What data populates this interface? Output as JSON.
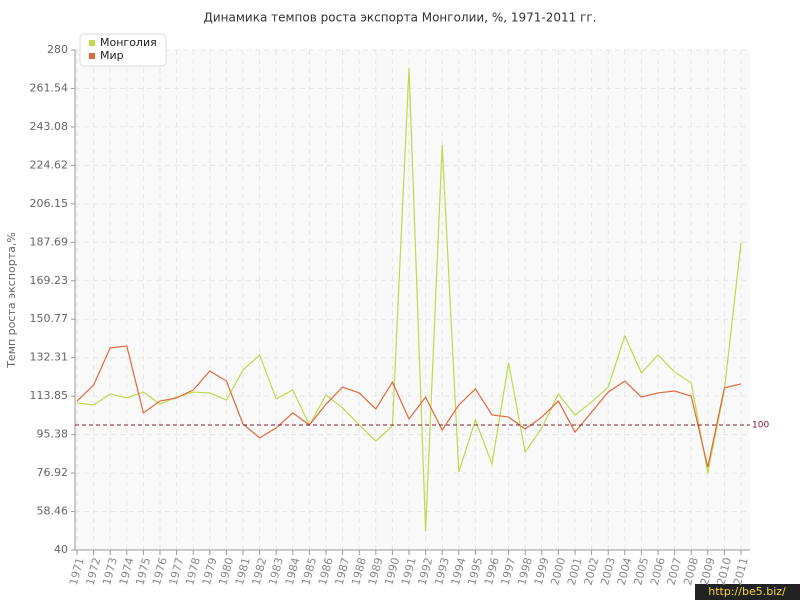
{
  "chart_data": {
    "type": "line",
    "title": "Динамика темпов роста экспорта Монголии, %, 1971-2011 гг.",
    "y_label": "Темп роста экспорта,%",
    "categories": [
      "1971",
      "1972",
      "1973",
      "1974",
      "1975",
      "1976",
      "1977",
      "1978",
      "1979",
      "1980",
      "1981",
      "1982",
      "1983",
      "1984",
      "1985",
      "1986",
      "1987",
      "1988",
      "1989",
      "1990",
      "1991",
      "1992",
      "1993",
      "1994",
      "1995",
      "1996",
      "1997",
      "1998",
      "1999",
      "2000",
      "2001",
      "2002",
      "2003",
      "2004",
      "2005",
      "2006",
      "2007",
      "2008",
      "2009",
      "2010",
      "2011"
    ],
    "series": [
      {
        "name": "Монголия",
        "color": "#bcdc4c",
        "values": [
          110.6,
          109.6,
          114.9,
          113,
          115.8,
          110,
          113.4,
          115.8,
          115.4,
          112,
          126.4,
          133.6,
          112.5,
          116.8,
          100,
          114.4,
          108.2,
          100,
          92.3,
          99.5,
          271.4,
          49.1,
          234.4,
          77.4,
          102.4,
          81.3,
          129.8,
          87,
          98.6,
          114.9,
          104.8,
          111,
          118.2,
          142.7,
          125,
          133.6,
          125.4,
          120.2,
          77,
          116.8,
          187.4
        ]
      },
      {
        "name": "Мир",
        "color": "#e2693f",
        "values": [
          111.5,
          119.2,
          137,
          137.9,
          105.8,
          111.5,
          113,
          116.8,
          125.9,
          121.1,
          100.5,
          93.8,
          98.6,
          105.8,
          100,
          110,
          118.2,
          115.4,
          107.7,
          120.6,
          102.9,
          113.4,
          97.6,
          109.6,
          117.3,
          104.8,
          103.8,
          98.1,
          103.8,
          111.5,
          96.6,
          106.2,
          115.8,
          121.1,
          113.4,
          115.4,
          116.3,
          113.9,
          79.8,
          117.8,
          119.7
        ]
      }
    ],
    "ylim": [
      40,
      280
    ],
    "yticks": [
      40,
      58.46,
      76.92,
      95.38,
      113.85,
      132.31,
      150.77,
      169.23,
      187.69,
      206.15,
      224.62,
      243.08,
      261.54,
      280
    ],
    "reference_line": 100,
    "reference_color": "#8b1a2a",
    "grid": true,
    "legend": "top-left",
    "watermark": "http://be5.biz/"
  }
}
